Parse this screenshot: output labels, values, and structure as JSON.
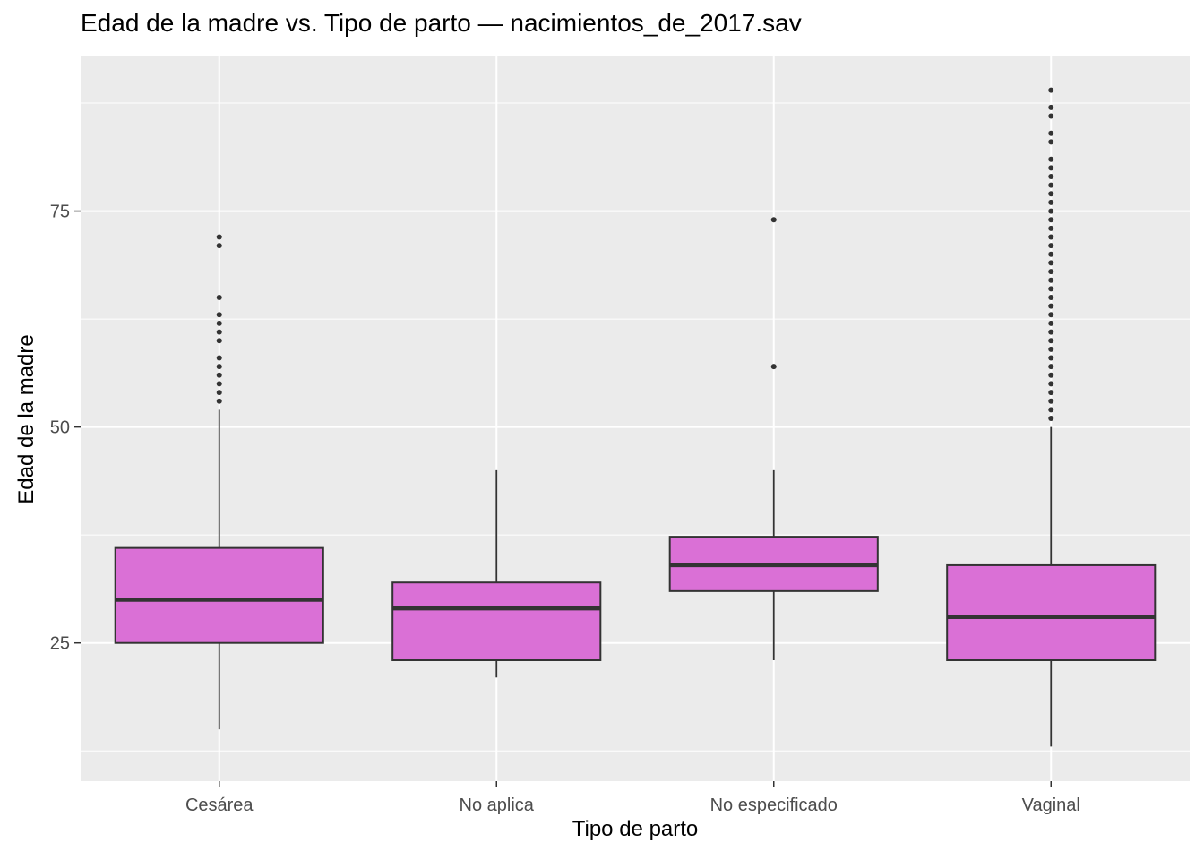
{
  "chart_data": {
    "type": "boxplot",
    "title": "Edad de la madre vs. Tipo de parto — nacimientos_de_2017.sav",
    "xlabel": "Tipo de parto",
    "ylabel": "Edad de la madre",
    "ylim": [
      9,
      93
    ],
    "yticks": [
      25,
      50,
      75
    ],
    "grid": true,
    "colors": {
      "panel": "#ebebeb",
      "grid": "#ffffff",
      "box_fill": "#da70d6",
      "box_line": "#333333",
      "tick_text": "#4d4d4d"
    },
    "categories": [
      "Cesárea",
      "No aplica",
      "No especificado",
      "Vaginal"
    ],
    "boxes": [
      {
        "category": "Cesárea",
        "whisker_low": 15,
        "q1": 25,
        "median": 30,
        "q3": 36,
        "whisker_high": 52,
        "outliers": [
          53,
          54,
          55,
          56,
          57,
          58,
          60,
          61,
          62,
          63,
          65,
          71,
          72
        ]
      },
      {
        "category": "No aplica",
        "whisker_low": 21,
        "q1": 23,
        "median": 29,
        "q3": 32,
        "whisker_high": 45,
        "outliers": []
      },
      {
        "category": "No especificado",
        "whisker_low": 23,
        "q1": 31,
        "median": 34,
        "q3": 37.3,
        "whisker_high": 45,
        "outliers": [
          57,
          74
        ]
      },
      {
        "category": "Vaginal",
        "whisker_low": 13,
        "q1": 23,
        "median": 28,
        "q3": 34,
        "whisker_high": 50,
        "outliers": [
          51,
          52,
          53,
          54,
          55,
          56,
          57,
          58,
          59,
          60,
          61,
          62,
          63,
          64,
          65,
          66,
          67,
          68,
          69,
          70,
          71,
          72,
          73,
          74,
          75,
          76,
          77,
          78,
          79,
          80,
          81,
          83,
          84,
          86,
          87,
          89
        ]
      }
    ]
  }
}
